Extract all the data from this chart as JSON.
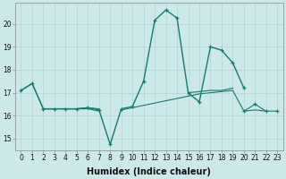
{
  "x": [
    0,
    1,
    2,
    3,
    4,
    5,
    6,
    7,
    8,
    9,
    10,
    11,
    12,
    13,
    14,
    15,
    16,
    17,
    18,
    19,
    20,
    21,
    22,
    23
  ],
  "lines": [
    {
      "y": [
        17.1,
        17.4,
        16.3,
        16.3,
        16.3,
        16.3,
        16.35,
        16.25,
        14.75,
        16.3,
        16.4,
        17.5,
        20.15,
        20.6,
        20.25,
        17.0,
        16.6,
        19.0,
        18.85,
        18.3,
        17.2,
        null,
        null,
        null
      ],
      "marker": true,
      "lw": 1.0
    },
    {
      "y": [
        17.1,
        17.4,
        16.3,
        16.3,
        16.3,
        16.3,
        16.3,
        16.2,
        null,
        null,
        null,
        null,
        null,
        null,
        null,
        17.0,
        17.05,
        17.1,
        17.1,
        17.2,
        null,
        null,
        null,
        null
      ],
      "marker": false,
      "lw": 0.8
    },
    {
      "y": [
        null,
        null,
        16.3,
        16.3,
        16.3,
        16.3,
        16.35,
        16.3,
        null,
        16.25,
        16.35,
        16.45,
        16.55,
        16.65,
        16.75,
        16.85,
        16.95,
        17.0,
        17.05,
        17.1,
        16.2,
        16.25,
        16.2,
        null
      ],
      "marker": false,
      "lw": 0.8
    },
    {
      "y": [
        null,
        null,
        null,
        null,
        null,
        null,
        null,
        null,
        null,
        null,
        null,
        null,
        null,
        null,
        null,
        null,
        null,
        null,
        null,
        null,
        16.2,
        16.5,
        16.2,
        16.2
      ],
      "marker": true,
      "lw": 0.8
    }
  ],
  "bg_color": "#cce8e8",
  "line_color": "#1a7a6e",
  "grid_color": "#afd4d4",
  "xlabel": "Humidex (Indice chaleur)",
  "ylabel_ticks": [
    15,
    16,
    17,
    18,
    19,
    20
  ],
  "xlim": [
    -0.5,
    23.5
  ],
  "ylim": [
    14.5,
    20.9
  ],
  "xtick_labels": [
    "0",
    "1",
    "2",
    "3",
    "4",
    "5",
    "6",
    "7",
    "8",
    "9",
    "10",
    "11",
    "12",
    "13",
    "14",
    "15",
    "16",
    "17",
    "18",
    "19",
    "20",
    "21",
    "22",
    "23"
  ],
  "label_fontsize": 7,
  "tick_fontsize": 5.5
}
